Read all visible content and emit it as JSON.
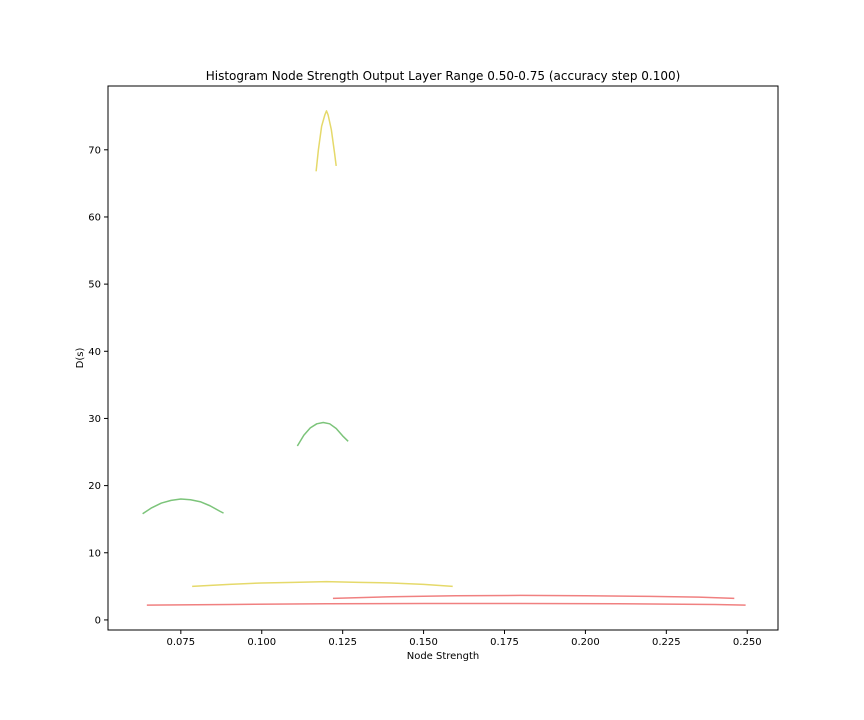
{
  "chart_data": {
    "type": "line",
    "title": "Histogram Node Strength Output Layer Range 0.50-0.75 (accuracy step 0.100)",
    "xlabel": "Node Strength",
    "ylabel": "D(s)",
    "xlim": [
      0.0525,
      0.2595
    ],
    "ylim": [
      -1.5,
      79.5
    ],
    "x_ticks": [
      0.075,
      0.1,
      0.125,
      0.15,
      0.175,
      0.2,
      0.225,
      0.25
    ],
    "x_tick_labels": [
      "0.075",
      "0.100",
      "0.125",
      "0.150",
      "0.175",
      "0.200",
      "0.225",
      "0.250"
    ],
    "y_ticks": [
      0,
      10,
      20,
      30,
      40,
      50,
      60,
      70
    ],
    "y_tick_labels": [
      "0",
      "10",
      "20",
      "30",
      "40",
      "50",
      "60",
      "70"
    ],
    "grid": false,
    "legend": "none",
    "colors": {
      "yellow": "#e5d96a",
      "green": "#7cc47a",
      "red": "#f08080"
    },
    "series": [
      {
        "color": "yellow",
        "x": [
          0.1168,
          0.1175,
          0.1185,
          0.1195,
          0.12,
          0.1205,
          0.1215,
          0.1225,
          0.123
        ],
        "y": [
          66.8,
          70.0,
          73.5,
          75.2,
          75.8,
          75.2,
          73.0,
          69.5,
          67.6
        ]
      },
      {
        "color": "green",
        "x": [
          0.111,
          0.113,
          0.115,
          0.117,
          0.119,
          0.121,
          0.123,
          0.125,
          0.1267
        ],
        "y": [
          25.9,
          27.5,
          28.6,
          29.2,
          29.4,
          29.2,
          28.5,
          27.4,
          26.6
        ]
      },
      {
        "color": "green",
        "x": [
          0.0632,
          0.066,
          0.069,
          0.072,
          0.075,
          0.078,
          0.081,
          0.084,
          0.087,
          0.0882
        ],
        "y": [
          15.8,
          16.7,
          17.4,
          17.8,
          18.0,
          17.9,
          17.6,
          17.0,
          16.2,
          15.9
        ]
      },
      {
        "color": "yellow",
        "x": [
          0.0785,
          0.09,
          0.1,
          0.11,
          0.12,
          0.13,
          0.14,
          0.15,
          0.159
        ],
        "y": [
          5.0,
          5.3,
          5.5,
          5.6,
          5.7,
          5.6,
          5.5,
          5.3,
          5.0
        ]
      },
      {
        "color": "red",
        "x": [
          0.122,
          0.14,
          0.16,
          0.18,
          0.2,
          0.22,
          0.235,
          0.246
        ],
        "y": [
          3.2,
          3.45,
          3.6,
          3.65,
          3.6,
          3.5,
          3.4,
          3.2
        ]
      },
      {
        "color": "red",
        "x": [
          0.0645,
          0.09,
          0.12,
          0.15,
          0.18,
          0.21,
          0.24,
          0.2495
        ],
        "y": [
          2.2,
          2.3,
          2.4,
          2.45,
          2.45,
          2.4,
          2.3,
          2.2
        ]
      }
    ]
  }
}
